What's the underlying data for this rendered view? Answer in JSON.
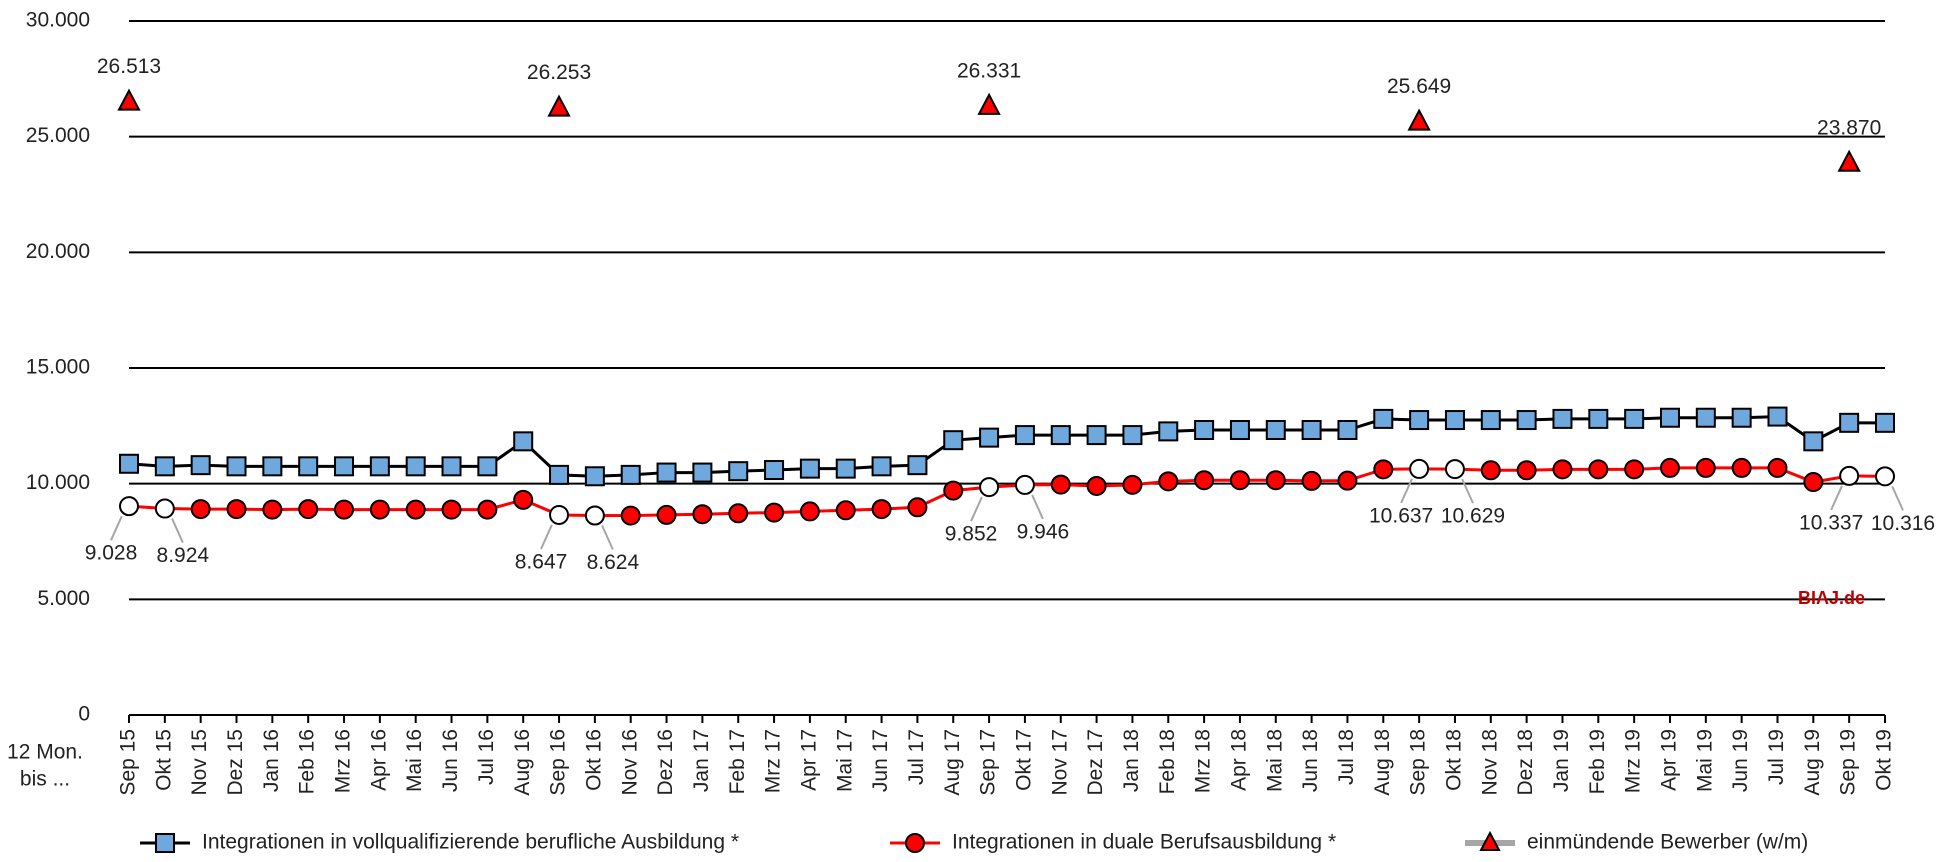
{
  "chart_data": {
    "type": "line",
    "x_label": [
      "12 Mon.",
      "bis ..."
    ],
    "annotation": "BIAJ.de",
    "categories": [
      "Sep 15",
      "Okt 15",
      "Nov 15",
      "Dez 15",
      "Jan 16",
      "Feb 16",
      "Mrz 16",
      "Apr 16",
      "Mai 16",
      "Jun 16",
      "Jul 16",
      "Aug 16",
      "Sep 16",
      "Okt 16",
      "Nov 16",
      "Dez 16",
      "Jan 17",
      "Feb 17",
      "Mrz 17",
      "Apr 17",
      "Mai 17",
      "Jun 17",
      "Jul 17",
      "Aug 17",
      "Sep 17",
      "Okt 17",
      "Nov 17",
      "Dez 17",
      "Jan 18",
      "Feb 18",
      "Mrz 18",
      "Apr 18",
      "Mai 18",
      "Jun 18",
      "Jul 18",
      "Aug 18",
      "Sep 18",
      "Okt 18",
      "Nov 18",
      "Dez 18",
      "Jan 19",
      "Feb 19",
      "Mrz 19",
      "Apr 19",
      "Mai 19",
      "Jun 19",
      "Jul 19",
      "Aug 19",
      "Sep 19",
      "Okt 19"
    ],
    "series": [
      {
        "name": "Integrationen in vollqualifizierende berufliche Ausbildung *",
        "color": "#000000",
        "marker": "square",
        "marker_color": "#6fa8dc",
        "values": [
          10860,
          10750,
          10800,
          10750,
          10750,
          10750,
          10750,
          10750,
          10750,
          10750,
          10750,
          11830,
          10380,
          10320,
          10380,
          10480,
          10480,
          10540,
          10590,
          10650,
          10650,
          10750,
          10800,
          11880,
          11990,
          12100,
          12100,
          12100,
          12100,
          12260,
          12320,
          12320,
          12320,
          12320,
          12320,
          12800,
          12750,
          12750,
          12750,
          12750,
          12800,
          12800,
          12800,
          12850,
          12850,
          12850,
          12900,
          11830,
          12630,
          12630
        ]
      },
      {
        "name": "Integrationen in duale Berufsausbildung *",
        "color": "#ff0000",
        "marker": "circle",
        "marker_color": "#ff0000",
        "values": [
          9028,
          8924,
          8900,
          8900,
          8880,
          8900,
          8880,
          8880,
          8880,
          8880,
          8880,
          9300,
          8647,
          8624,
          8620,
          8650,
          8680,
          8720,
          8750,
          8800,
          8850,
          8900,
          8980,
          9700,
          9852,
          9946,
          9960,
          9900,
          9950,
          10100,
          10150,
          10150,
          10150,
          10120,
          10130,
          10620,
          10637,
          10629,
          10580,
          10580,
          10620,
          10620,
          10620,
          10680,
          10680,
          10680,
          10680,
          10070,
          10337,
          10316
        ],
        "value_labels": [
          "9.028",
          "8.924",
          null,
          null,
          null,
          null,
          null,
          null,
          null,
          null,
          null,
          null,
          "8.647",
          "8.624",
          null,
          null,
          null,
          null,
          null,
          null,
          null,
          null,
          null,
          null,
          "9.852",
          "9.946",
          null,
          null,
          null,
          null,
          null,
          null,
          null,
          null,
          null,
          null,
          "10.637",
          "10.629",
          null,
          null,
          null,
          null,
          null,
          null,
          null,
          null,
          null,
          null,
          "10.337",
          "10.316"
        ]
      },
      {
        "name": "einmündende Bewerber (w/m)",
        "color": "#a6a6a6",
        "marker": "triangle",
        "marker_color": "#ff0000",
        "values": [
          26513,
          null,
          null,
          null,
          null,
          null,
          null,
          null,
          null,
          null,
          null,
          null,
          26253,
          null,
          null,
          null,
          null,
          null,
          null,
          null,
          null,
          null,
          null,
          null,
          26331,
          null,
          null,
          null,
          null,
          null,
          null,
          null,
          null,
          null,
          null,
          null,
          25649,
          null,
          null,
          null,
          null,
          null,
          null,
          null,
          null,
          null,
          null,
          null,
          23870,
          null
        ],
        "value_labels": [
          "26.513",
          null,
          null,
          null,
          null,
          null,
          null,
          null,
          null,
          null,
          null,
          null,
          "26.253",
          null,
          null,
          null,
          null,
          null,
          null,
          null,
          null,
          null,
          null,
          null,
          "26.331",
          null,
          null,
          null,
          null,
          null,
          null,
          null,
          null,
          null,
          null,
          null,
          "25.649",
          null,
          null,
          null,
          null,
          null,
          null,
          null,
          null,
          null,
          null,
          null,
          "23.870",
          null
        ]
      }
    ],
    "ylim": [
      0,
      30000
    ],
    "yticks": [
      0,
      {
        "value": 5000,
        "label": "5.000"
      },
      {
        "value": 10000,
        "label": "10.000"
      },
      {
        "value": 15000,
        "label": "15.000"
      },
      {
        "value": 20000,
        "label": "20.000"
      },
      {
        "value": 25000,
        "label": "25.000"
      },
      {
        "value": 30000,
        "label": "30.000"
      }
    ],
    "grid": true
  }
}
